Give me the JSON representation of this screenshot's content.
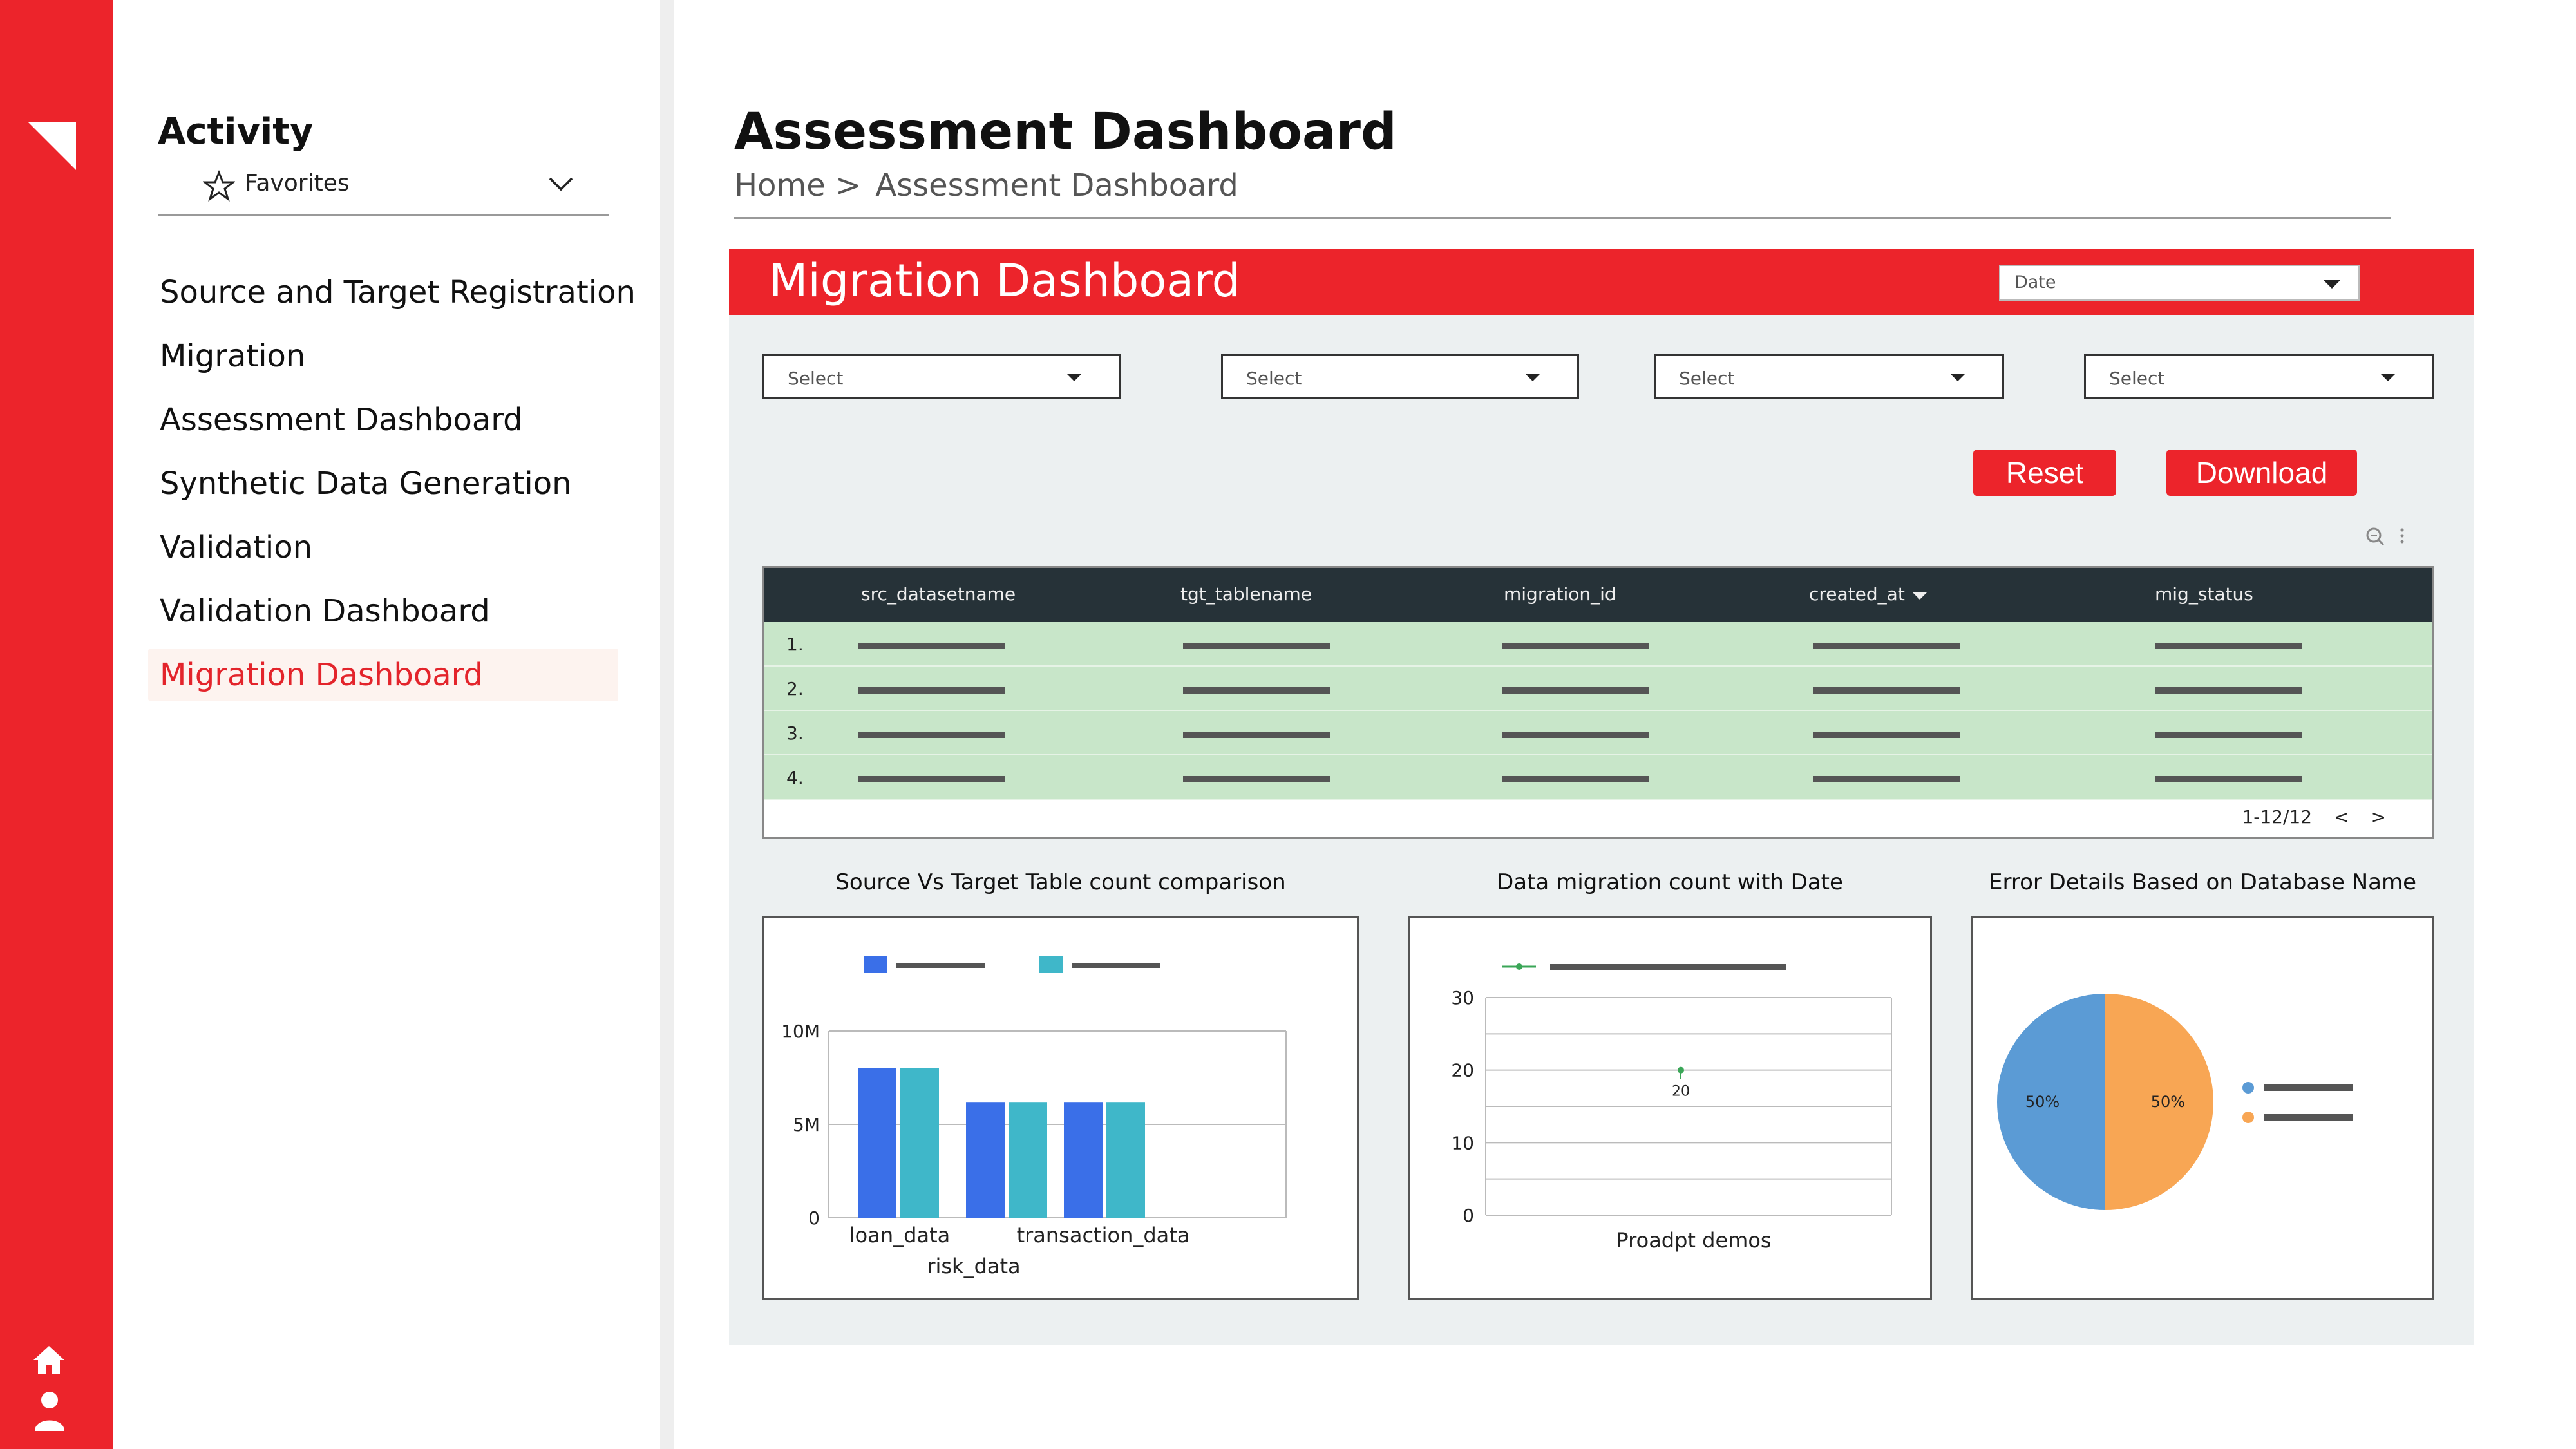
{
  "app": {
    "logo_icon": "corner-triangle-logo-icon",
    "rail_icons": [
      "home-icon",
      "user-icon"
    ]
  },
  "sidebar": {
    "section_title": "Activity",
    "favorites_label": "Favorites",
    "items": [
      {
        "label": "Source and Target Registration"
      },
      {
        "label": "Migration"
      },
      {
        "label": "Assessment Dashboard"
      },
      {
        "label": "Synthetic Data Generation"
      },
      {
        "label": "Validation"
      },
      {
        "label": "Validation Dashboard"
      },
      {
        "label": "Migration Dashboard",
        "active": true
      }
    ]
  },
  "header": {
    "title": "Assessment Dashboard",
    "breadcrumb": {
      "home": "Home >",
      "current": "Assessment Dashboard"
    }
  },
  "dashboard": {
    "title": "Migration Dashboard",
    "date_select": "Date",
    "filters": [
      "Select",
      "Select",
      "Select",
      "Select"
    ],
    "reset_label": "Reset",
    "download_label": "Download",
    "table": {
      "columns": [
        "src_datasetname",
        "tgt_tablename",
        "migration_id",
        "created_at",
        "mig_status"
      ],
      "sorted_column": "created_at",
      "row_numbers": [
        "1.",
        "2.",
        "3.",
        "4."
      ],
      "pagination": {
        "range": "1-12/12",
        "prev": "<",
        "next": ">"
      }
    }
  },
  "charts": {
    "bar_title": "Source Vs Target Table count comparison",
    "line_title": "Data migration count with Date",
    "pie_title": "Error Details Based on Database Name"
  },
  "chart_data": [
    {
      "type": "bar",
      "title": "Source Vs Target Table count comparison",
      "categories": [
        "loan_data",
        "risk_data",
        "transaction_data"
      ],
      "series": [
        {
          "values": [
            8000000,
            6200000,
            6200000
          ],
          "color": "#3a6fe8"
        },
        {
          "values": [
            8000000,
            6200000,
            6200000
          ],
          "color": "#3fb7c9"
        }
      ],
      "y_ticks": [
        "0",
        "5M",
        "10M"
      ],
      "ylim": [
        0,
        10000000
      ],
      "legend": "top-left"
    },
    {
      "type": "line",
      "title": "Data migration count with Date",
      "x": [
        "Proadpt demos"
      ],
      "series": [
        {
          "values": [
            20
          ],
          "color": "#3aa657"
        }
      ],
      "data_labels": [
        "20"
      ],
      "y_ticks": [
        "0",
        "10",
        "20",
        "30"
      ],
      "ylim": [
        0,
        30
      ],
      "legend": "top-left"
    },
    {
      "type": "pie",
      "title": "Error Details Based on Database Name",
      "slices": [
        {
          "value": 50,
          "label": "50%",
          "color": "#5b9bd5"
        },
        {
          "value": 50,
          "label": "50%",
          "color": "#f8a654"
        }
      ],
      "legend": "right"
    }
  ]
}
